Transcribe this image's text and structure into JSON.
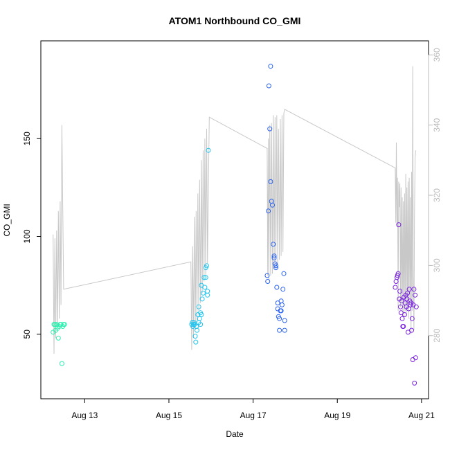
{
  "chart_data": {
    "type": "scatter",
    "title": "ATOM1 Northbound CO_GMI",
    "xlabel": "Date",
    "ylabel": "CO_GMI",
    "x_ticks": [
      "Aug 13",
      "Aug 15",
      "Aug 17",
      "Aug 19",
      "Aug 21"
    ],
    "y_ticks": [
      50,
      100,
      150
    ],
    "y2_ticks": [
      280,
      300,
      320,
      340,
      360
    ],
    "colors": {
      "axis": "#000000",
      "secondary_axis": "#bbbbbb",
      "line": "#c8c8c8"
    },
    "series": [
      {
        "color": "#2ff0b0",
        "points": [
          [
            "2016-08-12 06:00",
            51
          ],
          [
            "2016-08-12 06:30",
            55
          ],
          [
            "2016-08-12 07:00",
            55
          ],
          [
            "2016-08-12 07:30",
            52
          ],
          [
            "2016-08-12 08:00",
            55
          ],
          [
            "2016-08-12 08:30",
            53
          ],
          [
            "2016-08-12 09:00",
            48
          ],
          [
            "2016-08-12 09:30",
            54
          ],
          [
            "2016-08-12 10:00",
            55
          ],
          [
            "2016-08-12 10:30",
            55
          ],
          [
            "2016-08-12 11:00",
            35
          ],
          [
            "2016-08-12 11:30",
            54
          ],
          [
            "2016-08-12 12:00",
            55
          ],
          [
            "2016-08-12 12:30",
            55
          ]
        ]
      },
      {
        "color": "#22c4ee",
        "points": [
          [
            "2016-08-15 13:00",
            55
          ],
          [
            "2016-08-15 13:20",
            56
          ],
          [
            "2016-08-15 13:40",
            54
          ],
          [
            "2016-08-15 14:00",
            55
          ],
          [
            "2016-08-15 14:20",
            56
          ],
          [
            "2016-08-15 14:40",
            55
          ],
          [
            "2016-08-15 15:00",
            49
          ],
          [
            "2016-08-15 15:20",
            46
          ],
          [
            "2016-08-15 15:40",
            54
          ],
          [
            "2016-08-15 16:00",
            52
          ],
          [
            "2016-08-15 16:30",
            60
          ],
          [
            "2016-08-15 17:00",
            56
          ],
          [
            "2016-08-15 17:00",
            64
          ],
          [
            "2016-08-15 17:30",
            58
          ],
          [
            "2016-08-15 18:00",
            61
          ],
          [
            "2016-08-15 18:30",
            60
          ],
          [
            "2016-08-15 18:00",
            55
          ],
          [
            "2016-08-15 18:30",
            75
          ],
          [
            "2016-08-15 19:00",
            68
          ],
          [
            "2016-08-15 19:30",
            71
          ],
          [
            "2016-08-15 20:00",
            79
          ],
          [
            "2016-08-15 20:30",
            74
          ],
          [
            "2016-08-15 21:00",
            84
          ],
          [
            "2016-08-15 21:30",
            85
          ],
          [
            "2016-08-15 21:00",
            79
          ],
          [
            "2016-08-15 22:00",
            72
          ],
          [
            "2016-08-15 22:00",
            70
          ],
          [
            "2016-08-15 22:30",
            144
          ]
        ]
      },
      {
        "color": "#2a62f0",
        "points": [
          [
            "2016-08-17 08:00",
            80
          ],
          [
            "2016-08-17 08:20",
            77
          ],
          [
            "2016-08-17 08:40",
            113
          ],
          [
            "2016-08-17 09:00",
            177
          ],
          [
            "2016-08-17 09:30",
            155
          ],
          [
            "2016-08-17 10:00",
            187
          ],
          [
            "2016-08-17 10:00",
            128
          ],
          [
            "2016-08-17 10:30",
            118
          ],
          [
            "2016-08-17 11:00",
            116
          ],
          [
            "2016-08-17 11:30",
            96
          ],
          [
            "2016-08-17 12:00",
            89
          ],
          [
            "2016-08-17 12:00",
            90
          ],
          [
            "2016-08-17 12:30",
            86
          ],
          [
            "2016-08-17 13:00",
            85
          ],
          [
            "2016-08-17 13:00",
            84
          ],
          [
            "2016-08-17 13:30",
            74
          ],
          [
            "2016-08-17 14:00",
            63
          ],
          [
            "2016-08-17 14:00",
            66
          ],
          [
            "2016-08-17 14:30",
            59
          ],
          [
            "2016-08-17 15:00",
            58
          ],
          [
            "2016-08-17 15:00",
            52
          ],
          [
            "2016-08-17 15:30",
            62
          ],
          [
            "2016-08-17 16:00",
            62
          ],
          [
            "2016-08-17 16:00",
            67
          ],
          [
            "2016-08-17 16:30",
            65
          ],
          [
            "2016-08-17 17:00",
            73
          ],
          [
            "2016-08-17 17:30",
            81
          ],
          [
            "2016-08-17 18:00",
            52
          ],
          [
            "2016-08-17 18:00",
            57
          ]
        ]
      },
      {
        "color": "#7a22e0",
        "points": [
          [
            "2016-08-20 09:00",
            74
          ],
          [
            "2016-08-20 09:30",
            77
          ],
          [
            "2016-08-20 10:00",
            79
          ],
          [
            "2016-08-20 10:20",
            80
          ],
          [
            "2016-08-20 10:40",
            81
          ],
          [
            "2016-08-20 11:00",
            106
          ],
          [
            "2016-08-20 11:20",
            68
          ],
          [
            "2016-08-20 11:40",
            72
          ],
          [
            "2016-08-20 12:00",
            64
          ],
          [
            "2016-08-20 12:20",
            61
          ],
          [
            "2016-08-20 12:40",
            67
          ],
          [
            "2016-08-20 13:00",
            58
          ],
          [
            "2016-08-20 13:20",
            54
          ],
          [
            "2016-08-20 13:40",
            54
          ],
          [
            "2016-08-20 14:00",
            69
          ],
          [
            "2016-08-20 14:20",
            60
          ],
          [
            "2016-08-20 14:40",
            66
          ],
          [
            "2016-08-20 15:00",
            70
          ],
          [
            "2016-08-20 15:20",
            64
          ],
          [
            "2016-08-20 15:40",
            68
          ],
          [
            "2016-08-20 16:00",
            71
          ],
          [
            "2016-08-20 16:20",
            51
          ],
          [
            "2016-08-20 16:40",
            63
          ],
          [
            "2016-08-20 17:00",
            73
          ],
          [
            "2016-08-20 17:20",
            67
          ],
          [
            "2016-08-20 17:40",
            65
          ],
          [
            "2016-08-20 18:00",
            66
          ],
          [
            "2016-08-20 18:20",
            52
          ],
          [
            "2016-08-20 18:40",
            58
          ],
          [
            "2016-08-20 19:00",
            37
          ],
          [
            "2016-08-20 19:20",
            65
          ],
          [
            "2016-08-20 19:40",
            73
          ],
          [
            "2016-08-20 20:00",
            25
          ],
          [
            "2016-08-20 20:20",
            70
          ],
          [
            "2016-08-20 20:40",
            38
          ],
          [
            "2016-08-20 21:00",
            64
          ]
        ]
      }
    ],
    "line": [
      [
        "2016-08-12 06:00",
        101
      ],
      [
        "2016-08-12 06:30",
        40
      ],
      [
        "2016-08-12 07:00",
        99
      ],
      [
        "2016-08-12 07:30",
        48
      ],
      [
        "2016-08-12 08:00",
        103
      ],
      [
        "2016-08-12 08:30",
        52
      ],
      [
        "2016-08-12 09:00",
        113
      ],
      [
        "2016-08-12 09:30",
        58
      ],
      [
        "2016-08-12 10:00",
        118
      ],
      [
        "2016-08-12 10:30",
        65
      ],
      [
        "2016-08-12 11:00",
        157
      ],
      [
        "2016-08-12 12:00",
        73
      ],
      [
        "2016-08-15 12:30",
        87
      ],
      [
        "2016-08-15 13:00",
        42
      ],
      [
        "2016-08-15 13:30",
        95
      ],
      [
        "2016-08-15 14:00",
        48
      ],
      [
        "2016-08-15 14:30",
        110
      ],
      [
        "2016-08-15 15:00",
        52
      ],
      [
        "2016-08-15 15:30",
        113
      ],
      [
        "2016-08-15 16:00",
        57
      ],
      [
        "2016-08-15 16:30",
        122
      ],
      [
        "2016-08-15 17:00",
        62
      ],
      [
        "2016-08-15 17:30",
        129
      ],
      [
        "2016-08-15 18:00",
        66
      ],
      [
        "2016-08-15 18:30",
        139
      ],
      [
        "2016-08-15 19:00",
        71
      ],
      [
        "2016-08-15 19:30",
        144
      ],
      [
        "2016-08-15 20:00",
        77
      ],
      [
        "2016-08-15 20:30",
        150
      ],
      [
        "2016-08-15 21:00",
        80
      ],
      [
        "2016-08-15 21:30",
        155
      ],
      [
        "2016-08-15 22:00",
        86
      ],
      [
        "2016-08-15 23:00",
        161
      ],
      [
        "2016-08-17 08:00",
        145
      ],
      [
        "2016-08-17 08:20",
        80
      ],
      [
        "2016-08-17 08:40",
        150
      ],
      [
        "2016-08-17 09:00",
        78
      ],
      [
        "2016-08-17 09:30",
        157
      ],
      [
        "2016-08-17 10:00",
        80
      ],
      [
        "2016-08-17 10:30",
        158
      ],
      [
        "2016-08-17 11:00",
        81
      ],
      [
        "2016-08-17 11:30",
        162
      ],
      [
        "2016-08-17 12:00",
        83
      ],
      [
        "2016-08-17 12:30",
        161
      ],
      [
        "2016-08-17 13:00",
        84
      ],
      [
        "2016-08-17 13:30",
        162
      ],
      [
        "2016-08-17 14:00",
        86
      ],
      [
        "2016-08-17 14:30",
        155
      ],
      [
        "2016-08-17 15:00",
        88
      ],
      [
        "2016-08-17 15:30",
        160
      ],
      [
        "2016-08-17 16:00",
        90
      ],
      [
        "2016-08-17 16:30",
        162
      ],
      [
        "2016-08-17 17:00",
        92
      ],
      [
        "2016-08-17 17:30",
        163
      ],
      [
        "2016-08-17 18:00",
        165
      ],
      [
        "2016-08-20 09:00",
        135
      ],
      [
        "2016-08-20 09:20",
        107
      ],
      [
        "2016-08-20 09:40",
        148
      ],
      [
        "2016-08-20 10:00",
        105
      ],
      [
        "2016-08-20 10:20",
        130
      ],
      [
        "2016-08-20 10:40",
        62
      ],
      [
        "2016-08-20 11:00",
        128
      ],
      [
        "2016-08-20 11:20",
        115
      ],
      [
        "2016-08-20 11:40",
        127
      ],
      [
        "2016-08-20 12:00",
        64
      ],
      [
        "2016-08-20 12:20",
        125
      ],
      [
        "2016-08-20 12:40",
        66
      ],
      [
        "2016-08-20 13:00",
        120
      ],
      [
        "2016-08-20 13:20",
        61
      ],
      [
        "2016-08-20 13:40",
        118
      ],
      [
        "2016-08-20 14:00",
        57
      ],
      [
        "2016-08-20 14:20",
        122
      ],
      [
        "2016-08-20 14:40",
        62
      ],
      [
        "2016-08-20 15:00",
        132
      ],
      [
        "2016-08-20 15:20",
        60
      ],
      [
        "2016-08-20 15:40",
        125
      ],
      [
        "2016-08-20 16:00",
        64
      ],
      [
        "2016-08-20 16:20",
        128
      ],
      [
        "2016-08-20 16:40",
        58
      ],
      [
        "2016-08-20 17:00",
        130
      ],
      [
        "2016-08-20 17:20",
        66
      ],
      [
        "2016-08-20 17:40",
        120
      ],
      [
        "2016-08-20 18:00",
        50
      ],
      [
        "2016-08-20 18:20",
        133
      ],
      [
        "2016-08-20 18:40",
        62
      ],
      [
        "2016-08-20 19:00",
        187
      ],
      [
        "2016-08-20 19:20",
        80
      ],
      [
        "2016-08-20 19:40",
        52
      ],
      [
        "2016-08-20 20:00",
        110
      ],
      [
        "2016-08-20 20:20",
        140
      ],
      [
        "2016-08-20 20:40",
        144
      ]
    ],
    "xlim": [
      "2016-08-11 23:00",
      "2016-08-21 04:00"
    ],
    "ylim": [
      17,
      200
    ],
    "y2lim": [
      262,
      364
    ],
    "grid": false
  }
}
